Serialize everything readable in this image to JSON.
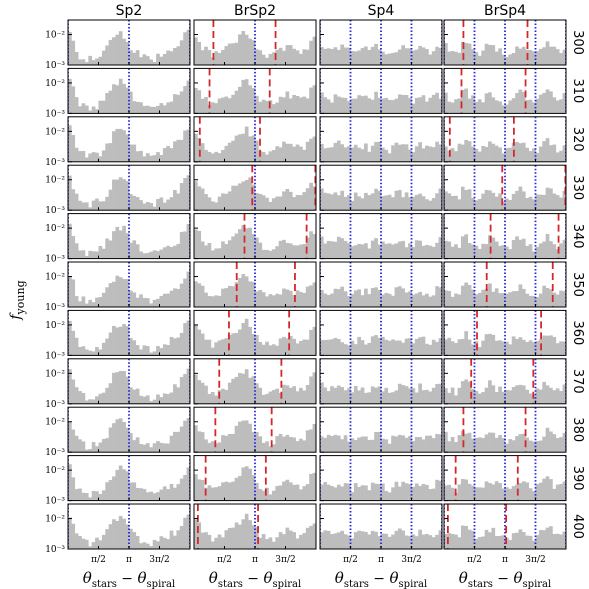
{
  "chart_data": {
    "type": "bar",
    "title": "",
    "columns": [
      "Sp2",
      "BrSp2",
      "Sp4",
      "BrSp4"
    ],
    "rows": [
      "300",
      "310",
      "320",
      "330",
      "340",
      "350",
      "360",
      "370",
      "380",
      "390",
      "400"
    ],
    "ylabel": "f_young",
    "ylabel_main": "f",
    "ylabel_sub": "young",
    "xlabel": "θ_stars − θ_spiral",
    "xlabel_main": "θ",
    "xlabel_sub1": "stars",
    "xlabel_minus": " − ",
    "xlabel_sub2": "spiral",
    "yscale": "log",
    "ylim": [
      0.001,
      0.03
    ],
    "yticks": [
      {
        "value": 0.01,
        "label": "10⁻²"
      },
      {
        "value": 0.001,
        "label": "10⁻³"
      }
    ],
    "xlim": [
      0,
      6.2832
    ],
    "xticks": [
      {
        "value": 1.5708,
        "label": "π/2"
      },
      {
        "value": 3.1416,
        "label": "π"
      },
      {
        "value": 4.7124,
        "label": "3π/2"
      }
    ],
    "bins": 36,
    "spiral_arm_colors": {
      "blue_dotted": "#2222dd",
      "red_dashed": "#d62728",
      "hist_fill": "#bdbdbd"
    },
    "blue_lines": {
      "Sp2": [
        0.0,
        3.1416,
        6.2832
      ],
      "BrSp2": [
        3.1416
      ],
      "Sp4": [
        0.0,
        1.5708,
        3.1416,
        4.7124,
        6.2832
      ],
      "BrSp4": [
        0.0,
        1.5708,
        3.1416,
        4.7124,
        6.2832
      ]
    },
    "red_lines": {
      "BrSp2": [
        [
          1.0,
          4.2
        ],
        [
          0.8,
          3.9
        ],
        [
          0.3,
          3.4
        ],
        [
          6.25,
          3.0
        ],
        [
          2.6,
          5.8
        ],
        [
          2.2,
          5.2
        ],
        [
          1.8,
          4.9
        ],
        [
          1.3,
          4.5
        ],
        [
          1.1,
          4.0
        ],
        [
          0.6,
          3.7
        ],
        [
          0.2,
          3.3
        ]
      ],
      "BrSp4": [
        [
          1.0,
          4.3
        ],
        [
          0.9,
          4.2
        ],
        [
          0.3,
          3.6
        ],
        [
          3.0,
          6.25
        ],
        [
          2.4,
          5.9
        ],
        [
          2.2,
          5.6
        ],
        [
          1.7,
          5.0
        ],
        [
          1.4,
          4.6
        ],
        [
          1.0,
          4.2
        ],
        [
          0.6,
          3.8
        ],
        [
          0.2,
          3.2
        ]
      ]
    },
    "histogram_heights": {
      "Sp2": [
        0.012,
        0.006,
        0.003,
        0.002,
        0.0018,
        0.0016,
        0.0015,
        0.0016,
        0.0018,
        0.002,
        0.0025,
        0.0035,
        0.005,
        0.008,
        0.009,
        0.011,
        0.009,
        0.007,
        0.004,
        0.003,
        0.0025,
        0.002,
        0.0018,
        0.0016,
        0.0015,
        0.0016,
        0.0018,
        0.002,
        0.0022,
        0.0025,
        0.003,
        0.0035,
        0.004,
        0.006,
        0.009,
        0.011
      ],
      "BrSp2": [
        0.009,
        0.006,
        0.004,
        0.003,
        0.0025,
        0.002,
        0.0022,
        0.0025,
        0.003,
        0.0035,
        0.004,
        0.005,
        0.006,
        0.008,
        0.01,
        0.012,
        0.009,
        0.006,
        0.004,
        0.003,
        0.0025,
        0.0022,
        0.002,
        0.0022,
        0.0025,
        0.003,
        0.0035,
        0.004,
        0.0035,
        0.003,
        0.0028,
        0.0025,
        0.003,
        0.004,
        0.006,
        0.008
      ],
      "Sp4": [
        0.004,
        0.0035,
        0.003,
        0.0028,
        0.0032,
        0.004,
        0.0035,
        0.003,
        0.0028,
        0.0025,
        0.003,
        0.0035,
        0.0032,
        0.003,
        0.0028,
        0.0032,
        0.0038,
        0.0035,
        0.003,
        0.0026,
        0.0024,
        0.0028,
        0.0034,
        0.0038,
        0.0034,
        0.003,
        0.0028,
        0.0026,
        0.003,
        0.0035,
        0.0032,
        0.0028,
        0.0026,
        0.003,
        0.0036,
        0.004
      ],
      "BrSp4": [
        0.004,
        0.003,
        0.0026,
        0.0024,
        0.003,
        0.0045,
        0.005,
        0.004,
        0.003,
        0.0026,
        0.0024,
        0.003,
        0.0038,
        0.0045,
        0.004,
        0.0032,
        0.0028,
        0.0024,
        0.0022,
        0.0026,
        0.0032,
        0.004,
        0.0045,
        0.0038,
        0.003,
        0.0026,
        0.0022,
        0.0026,
        0.0032,
        0.004,
        0.005,
        0.0042,
        0.0032,
        0.0026,
        0.003,
        0.0036
      ]
    }
  }
}
